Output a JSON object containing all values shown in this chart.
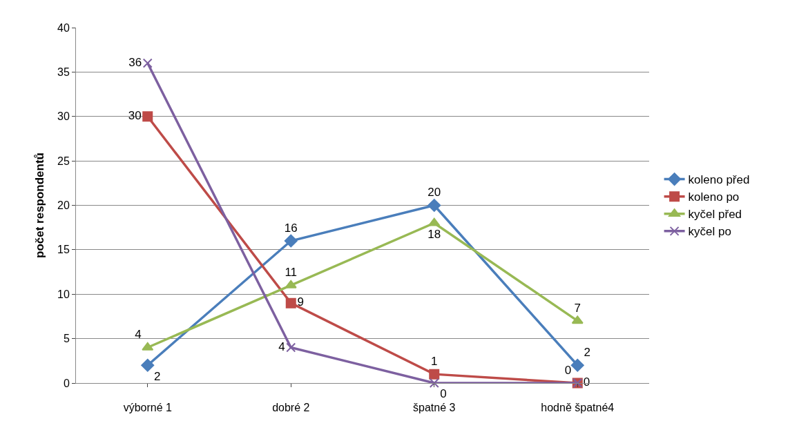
{
  "chart_data": {
    "type": "line",
    "ylabel": "počet respondentů",
    "categories": [
      "výborné 1",
      "dobré 2",
      "špatné 3",
      "hodně špatné4"
    ],
    "series": [
      {
        "name": "koleno před",
        "color": "#4a7ebb",
        "marker": "diamond",
        "values": [
          2,
          16,
          20,
          2
        ]
      },
      {
        "name": "koleno po",
        "color": "#be4b48",
        "marker": "square",
        "values": [
          30,
          9,
          1,
          0
        ]
      },
      {
        "name": "kyčel před",
        "color": "#98b954",
        "marker": "triangle",
        "values": [
          4,
          11,
          18,
          7
        ]
      },
      {
        "name": "kyčel po",
        "color": "#7d60a0",
        "marker": "cross",
        "values": [
          36,
          4,
          0,
          0
        ]
      }
    ],
    "ylim": [
      0,
      40
    ],
    "yticks": [
      0,
      5,
      10,
      15,
      20,
      25,
      30,
      35,
      40
    ],
    "grid": "y",
    "legend": "right",
    "data_labels": true
  }
}
